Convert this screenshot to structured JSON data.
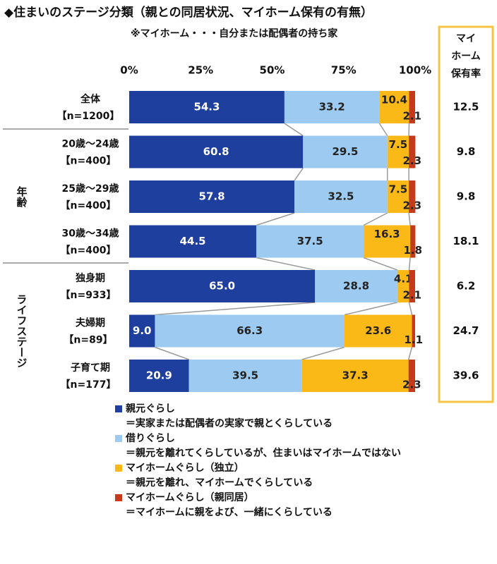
{
  "chart_data": {
    "type": "stacked-bar-horizontal",
    "title": "◆住まいのステージ分類（親との同居状況、マイホーム保有の有無）",
    "subtitle": "※マイホーム・・・自分または配偶者の持ち家",
    "categories": [
      "全体",
      "20歳～24歳",
      "25歳～29歳",
      "30歳～34歳",
      "独身期",
      "夫婦期",
      "子育て期"
    ],
    "sample_sizes": [
      "【n=1200】",
      "【n=400】",
      "【n=400】",
      "【n=400】",
      "【n=933】",
      "【n=89】",
      "【n=177】"
    ],
    "group_labels": [
      "年齢",
      "ライフステージ"
    ],
    "xlim": [
      0,
      100
    ],
    "xticks": [
      {
        "value": 0,
        "label": "0%"
      },
      {
        "value": 25,
        "label": "25%"
      },
      {
        "value": 50,
        "label": "50%"
      },
      {
        "value": 75,
        "label": "75%"
      },
      {
        "value": 100,
        "label": "100%"
      }
    ],
    "series": [
      {
        "name": "親元ぐらし",
        "description": "＝実家または配偶者の実家で親とくらしている",
        "color": "#1f3f9f",
        "values": [
          54.3,
          60.8,
          57.8,
          44.5,
          65.0,
          9.0,
          20.9
        ],
        "value_labels": [
          "54.3",
          "60.8",
          "57.8",
          "44.5",
          "65.0",
          "9.0",
          "20.9"
        ]
      },
      {
        "name": "借りぐらし",
        "description": "＝親元を離れてくらしているが、住まいはマイホームではない",
        "color": "#9dcaf1",
        "values": [
          33.2,
          29.5,
          32.5,
          37.5,
          28.8,
          66.3,
          39.5
        ]
      },
      {
        "name": "マイホームぐらし（独立）",
        "description": "＝親元を離れ、マイホームでくらしている",
        "color": "#fbb917",
        "values": [
          10.4,
          7.5,
          7.5,
          16.3,
          4.1,
          23.6,
          37.3
        ]
      },
      {
        "name": "マイホームぐらし（親同居）",
        "description": "＝マイホームに親をよび、一緒にくらしている",
        "color": "#c33b1a",
        "values": [
          2.1,
          2.3,
          2.3,
          1.8,
          2.1,
          1.1,
          2.3
        ]
      }
    ],
    "extra_column": {
      "header": [
        "マイ",
        "ホーム",
        "保有率"
      ],
      "values": [
        12.5,
        9.8,
        9.8,
        18.1,
        6.2,
        24.7,
        39.6
      ]
    }
  }
}
